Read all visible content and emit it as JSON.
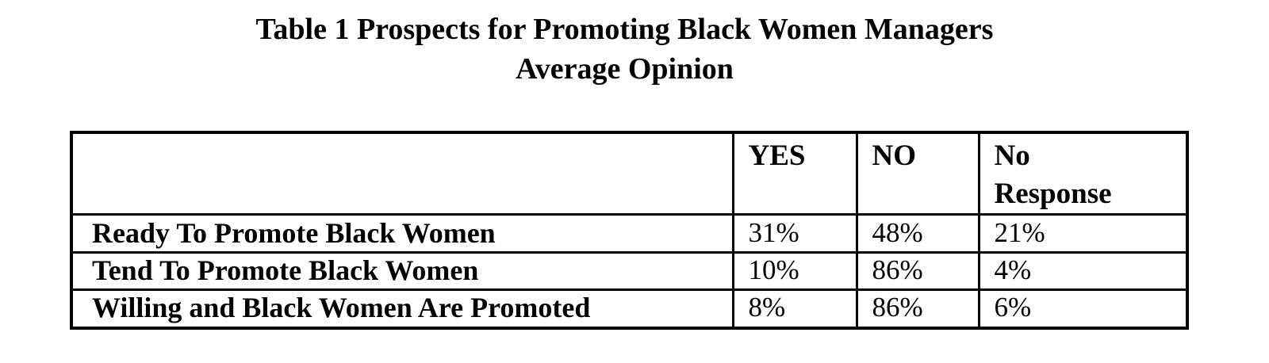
{
  "title": {
    "line1": "Table 1 Prospects for Promoting Black Women Managers",
    "line2": "Average Opinion"
  },
  "table": {
    "columns": [
      "YES",
      "NO",
      "No Response"
    ],
    "rows": [
      {
        "label": "Ready To Promote Black Women",
        "values": [
          "31%",
          "48%",
          "21%"
        ]
      },
      {
        "label": "Tend To Promote Black Women",
        "values": [
          "10%",
          "86%",
          "4%"
        ]
      },
      {
        "label": "Willing and Black Women Are Promoted",
        "values": [
          "8%",
          "86%",
          "6%"
        ]
      }
    ]
  },
  "colors": {
    "text": "#000000",
    "border": "#000000",
    "background": "#ffffff"
  }
}
